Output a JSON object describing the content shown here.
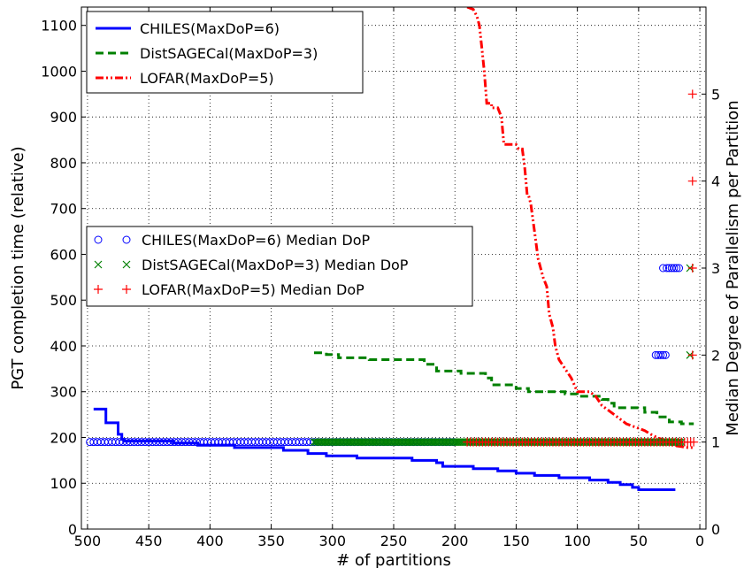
{
  "chart_data": {
    "type": "line",
    "xlabel": "# of partitions",
    "ylabel": "PGT completion time (relative)",
    "y2label": "Median Degree of Parallelism per Partition",
    "xlim": [
      505,
      -5
    ],
    "ylim": [
      0,
      1140
    ],
    "y2lim": [
      0,
      6
    ],
    "x_ticks": [
      500,
      450,
      400,
      350,
      300,
      250,
      200,
      150,
      100,
      50,
      0
    ],
    "y_ticks": [
      0,
      100,
      200,
      300,
      400,
      500,
      600,
      700,
      800,
      900,
      1000,
      1100
    ],
    "y2_ticks": [
      0,
      1,
      2,
      3,
      4,
      5
    ],
    "grid": true,
    "series": [
      {
        "name": "CHILES(MaxDoP=6)",
        "axis": "left",
        "color": "#0000ff",
        "style": "solid",
        "points": [
          [
            495,
            262
          ],
          [
            485,
            262
          ],
          [
            485,
            232
          ],
          [
            475,
            232
          ],
          [
            475,
            207
          ],
          [
            472,
            207
          ],
          [
            472,
            196
          ],
          [
            470,
            196
          ],
          [
            470,
            192
          ],
          [
            430,
            192
          ],
          [
            430,
            188
          ],
          [
            410,
            188
          ],
          [
            410,
            183
          ],
          [
            380,
            183
          ],
          [
            380,
            178
          ],
          [
            340,
            178
          ],
          [
            340,
            172
          ],
          [
            320,
            172
          ],
          [
            320,
            165
          ],
          [
            305,
            165
          ],
          [
            305,
            160
          ],
          [
            280,
            160
          ],
          [
            280,
            155
          ],
          [
            235,
            155
          ],
          [
            235,
            150
          ],
          [
            215,
            150
          ],
          [
            215,
            145
          ],
          [
            210,
            145
          ],
          [
            210,
            137
          ],
          [
            185,
            137
          ],
          [
            185,
            132
          ],
          [
            165,
            132
          ],
          [
            165,
            127
          ],
          [
            150,
            127
          ],
          [
            150,
            122
          ],
          [
            135,
            122
          ],
          [
            135,
            117
          ],
          [
            115,
            117
          ],
          [
            115,
            112
          ],
          [
            90,
            112
          ],
          [
            90,
            107
          ],
          [
            75,
            107
          ],
          [
            75,
            102
          ],
          [
            65,
            102
          ],
          [
            65,
            97
          ],
          [
            55,
            97
          ],
          [
            55,
            91
          ],
          [
            50,
            91
          ],
          [
            50,
            86
          ],
          [
            20,
            86
          ]
        ]
      },
      {
        "name": "DistSAGECal(MaxDoP=3)",
        "axis": "left",
        "color": "#008000",
        "style": "dashed",
        "points": [
          [
            315,
            385
          ],
          [
            305,
            385
          ],
          [
            305,
            381
          ],
          [
            295,
            381
          ],
          [
            295,
            374
          ],
          [
            270,
            374
          ],
          [
            270,
            370
          ],
          [
            225,
            370
          ],
          [
            225,
            360
          ],
          [
            215,
            360
          ],
          [
            215,
            345
          ],
          [
            195,
            345
          ],
          [
            195,
            340
          ],
          [
            175,
            340
          ],
          [
            175,
            330
          ],
          [
            170,
            330
          ],
          [
            170,
            315
          ],
          [
            150,
            315
          ],
          [
            150,
            307
          ],
          [
            140,
            307
          ],
          [
            140,
            300
          ],
          [
            110,
            300
          ],
          [
            110,
            295
          ],
          [
            100,
            295
          ],
          [
            100,
            290
          ],
          [
            80,
            290
          ],
          [
            80,
            283
          ],
          [
            75,
            283
          ],
          [
            75,
            275
          ],
          [
            70,
            275
          ],
          [
            70,
            265
          ],
          [
            45,
            265
          ],
          [
            45,
            255
          ],
          [
            35,
            255
          ],
          [
            35,
            245
          ],
          [
            25,
            245
          ],
          [
            25,
            234
          ],
          [
            15,
            234
          ],
          [
            15,
            230
          ],
          [
            5,
            230
          ]
        ]
      },
      {
        "name": "LOFAR(MaxDoP=5)",
        "axis": "left",
        "color": "#ff0000",
        "style": "dashdot",
        "points": [
          [
            190,
            1140
          ],
          [
            185,
            1135
          ],
          [
            182,
            1120
          ],
          [
            180,
            1100
          ],
          [
            178,
            1050
          ],
          [
            176,
            1000
          ],
          [
            174,
            930
          ],
          [
            170,
            930
          ],
          [
            170,
            920
          ],
          [
            165,
            920
          ],
          [
            162,
            900
          ],
          [
            160,
            840
          ],
          [
            150,
            840
          ],
          [
            148,
            830
          ],
          [
            145,
            830
          ],
          [
            143,
            790
          ],
          [
            141,
            730
          ],
          [
            140,
            730
          ],
          [
            138,
            710
          ],
          [
            135,
            650
          ],
          [
            132,
            590
          ],
          [
            128,
            550
          ],
          [
            125,
            530
          ],
          [
            123,
            470
          ],
          [
            120,
            440
          ],
          [
            118,
            400
          ],
          [
            115,
            370
          ],
          [
            110,
            350
          ],
          [
            105,
            330
          ],
          [
            100,
            300
          ],
          [
            95,
            300
          ],
          [
            90,
            300
          ],
          [
            85,
            290
          ],
          [
            80,
            270
          ],
          [
            75,
            260
          ],
          [
            70,
            250
          ],
          [
            65,
            240
          ],
          [
            60,
            230
          ],
          [
            55,
            225
          ],
          [
            50,
            220
          ],
          [
            45,
            215
          ],
          [
            40,
            207
          ],
          [
            35,
            200
          ],
          [
            30,
            195
          ],
          [
            25,
            185
          ],
          [
            20,
            182
          ],
          [
            15,
            180
          ],
          [
            10,
            178
          ],
          [
            5,
            178
          ]
        ]
      }
    ],
    "median_dop_series": [
      {
        "name": "CHILES(MaxDoP=6) Median DoP",
        "axis": "right",
        "color": "#0000ff",
        "marker": "circle",
        "x_range": [
          498,
          200
        ],
        "x_step": 3,
        "value": 1,
        "extra_points": [
          [
            36,
            2
          ],
          [
            34,
            2
          ],
          [
            32,
            2
          ],
          [
            30,
            2
          ],
          [
            28,
            2
          ],
          [
            30,
            3
          ],
          [
            27,
            3
          ],
          [
            25,
            3
          ],
          [
            23,
            3
          ],
          [
            21,
            3
          ],
          [
            19,
            3
          ],
          [
            17,
            3
          ]
        ]
      },
      {
        "name": "DistSAGECal(MaxDoP=3) Median DoP",
        "axis": "right",
        "color": "#008000",
        "marker": "x",
        "x_range": [
          315,
          15
        ],
        "x_step": 1.5,
        "value": 1,
        "extra_points": [
          [
            8,
            2
          ],
          [
            8,
            3
          ]
        ]
      },
      {
        "name": "LOFAR(MaxDoP=5) Median DoP",
        "axis": "right",
        "color": "#ff0000",
        "marker": "plus",
        "x_range": [
          190,
          5
        ],
        "x_step": 2.5,
        "value": 1,
        "extra_points": [
          [
            6,
            2
          ],
          [
            6,
            3
          ],
          [
            6,
            4
          ],
          [
            6,
            5
          ]
        ]
      }
    ],
    "legend_top": [
      "CHILES(MaxDoP=6)",
      "DistSAGECal(MaxDoP=3)",
      "LOFAR(MaxDoP=5)"
    ],
    "legend_bottom": [
      "CHILES(MaxDoP=6) Median DoP",
      "DistSAGECal(MaxDoP=3) Median DoP",
      "LOFAR(MaxDoP=5) Median DoP"
    ],
    "legend_top_placement": "upper-left",
    "legend_bottom_placement": "center-left"
  }
}
